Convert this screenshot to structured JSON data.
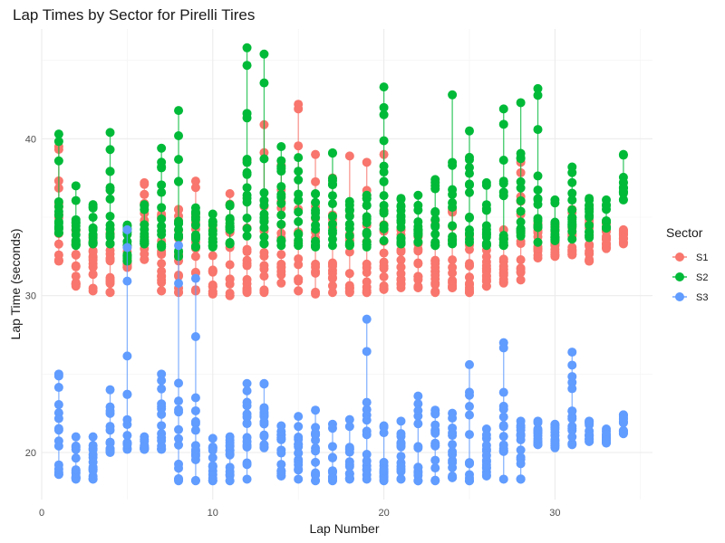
{
  "chart_data": {
    "type": "scatter",
    "title": "Lap Times by Sector for Pirelli Tires",
    "xlabel": "Lap Number",
    "ylabel": "Lap Time (seconds)",
    "xlim": [
      0,
      35.7
    ],
    "ylim": [
      17,
      47
    ],
    "xticks": [
      0,
      10,
      20,
      30
    ],
    "yticks": [
      20,
      30,
      40
    ],
    "grid": true,
    "legend": {
      "title": "Sector",
      "position": "right"
    },
    "series": [
      {
        "name": "S1",
        "color": "#F8766D",
        "ranges": [
          {
            "lap": 1,
            "min": 32.2,
            "max": 39.5
          },
          {
            "lap": 2,
            "min": 30.6,
            "max": 34.2
          },
          {
            "lap": 3,
            "min": 30.3,
            "max": 33.8
          },
          {
            "lap": 4,
            "min": 30.2,
            "max": 34.0
          },
          {
            "lap": 5,
            "min": 31.8,
            "max": 33.2
          },
          {
            "lap": 6,
            "min": 32.3,
            "max": 37.2
          },
          {
            "lap": 7,
            "min": 30.3,
            "max": 35.2
          },
          {
            "lap": 8,
            "min": 30.2,
            "max": 35.5
          },
          {
            "lap": 9,
            "min": 30.3,
            "max": 37.3
          },
          {
            "lap": 10,
            "min": 30.1,
            "max": 34.5
          },
          {
            "lap": 11,
            "min": 30.0,
            "max": 36.5
          },
          {
            "lap": 12,
            "min": 30.2,
            "max": 38.6
          },
          {
            "lap": 13,
            "min": 30.2,
            "max": 40.9
          },
          {
            "lap": 14,
            "min": 30.8,
            "max": 38.3
          },
          {
            "lap": 15,
            "min": 30.3,
            "max": 42.2
          },
          {
            "lap": 16,
            "min": 30.1,
            "max": 39.0
          },
          {
            "lap": 17,
            "min": 30.2,
            "max": 37.5
          },
          {
            "lap": 18,
            "min": 30.2,
            "max": 38.9
          },
          {
            "lap": 19,
            "min": 30.2,
            "max": 38.5
          },
          {
            "lap": 20,
            "min": 30.4,
            "max": 39.0
          },
          {
            "lap": 21,
            "min": 30.5,
            "max": 34.2
          },
          {
            "lap": 22,
            "min": 30.5,
            "max": 33.8
          },
          {
            "lap": 23,
            "min": 30.2,
            "max": 34.8
          },
          {
            "lap": 24,
            "min": 30.5,
            "max": 35.5
          },
          {
            "lap": 25,
            "min": 30.2,
            "max": 33.8
          },
          {
            "lap": 26,
            "min": 30.6,
            "max": 33.2
          },
          {
            "lap": 27,
            "min": 30.8,
            "max": 34.2
          },
          {
            "lap": 28,
            "min": 31.0,
            "max": 38.5
          },
          {
            "lap": 29,
            "min": 32.4,
            "max": 34.6
          },
          {
            "lap": 30,
            "min": 32.5,
            "max": 34.5
          },
          {
            "lap": 31,
            "min": 32.6,
            "max": 35.5
          },
          {
            "lap": 32,
            "min": 32.2,
            "max": 34.8
          },
          {
            "lap": 33,
            "min": 33.0,
            "max": 34.6
          },
          {
            "lap": 34,
            "min": 33.3,
            "max": 34.2
          }
        ]
      },
      {
        "name": "S2",
        "color": "#00BA38",
        "ranges": [
          {
            "lap": 1,
            "min": 34.0,
            "max": 40.3
          },
          {
            "lap": 2,
            "min": 33.2,
            "max": 37.0
          },
          {
            "lap": 3,
            "min": 33.3,
            "max": 35.8
          },
          {
            "lap": 4,
            "min": 33.3,
            "max": 40.4
          },
          {
            "lap": 5,
            "min": 32.2,
            "max": 34.5
          },
          {
            "lap": 6,
            "min": 33.3,
            "max": 35.8
          },
          {
            "lap": 7,
            "min": 33.1,
            "max": 39.4
          },
          {
            "lap": 8,
            "min": 32.5,
            "max": 41.8
          },
          {
            "lap": 9,
            "min": 33.1,
            "max": 35.6
          },
          {
            "lap": 10,
            "min": 33.1,
            "max": 35.2
          },
          {
            "lap": 11,
            "min": 33.3,
            "max": 35.8
          },
          {
            "lap": 12,
            "min": 33.8,
            "max": 45.8
          },
          {
            "lap": 13,
            "min": 33.3,
            "max": 45.4
          },
          {
            "lap": 14,
            "min": 33.2,
            "max": 39.5
          },
          {
            "lap": 15,
            "min": 33.2,
            "max": 38.8
          },
          {
            "lap": 16,
            "min": 33.1,
            "max": 36.5
          },
          {
            "lap": 17,
            "min": 33.2,
            "max": 39.1
          },
          {
            "lap": 18,
            "min": 33.2,
            "max": 36.0
          },
          {
            "lap": 19,
            "min": 33.1,
            "max": 36.4
          },
          {
            "lap": 20,
            "min": 33.5,
            "max": 43.3
          },
          {
            "lap": 21,
            "min": 33.3,
            "max": 36.2
          },
          {
            "lap": 22,
            "min": 33.4,
            "max": 36.4
          },
          {
            "lap": 23,
            "min": 33.2,
            "max": 37.4
          },
          {
            "lap": 24,
            "min": 33.3,
            "max": 42.8
          },
          {
            "lap": 25,
            "min": 33.4,
            "max": 40.5
          },
          {
            "lap": 26,
            "min": 33.2,
            "max": 37.2
          },
          {
            "lap": 27,
            "min": 33.2,
            "max": 41.9
          },
          {
            "lap": 28,
            "min": 33.8,
            "max": 42.3
          },
          {
            "lap": 29,
            "min": 33.4,
            "max": 43.2
          },
          {
            "lap": 30,
            "min": 33.5,
            "max": 36.1
          },
          {
            "lap": 31,
            "min": 33.6,
            "max": 38.2
          },
          {
            "lap": 32,
            "min": 33.7,
            "max": 36.2
          },
          {
            "lap": 33,
            "min": 34.3,
            "max": 36.1
          },
          {
            "lap": 34,
            "min": 36.1,
            "max": 39.0
          }
        ]
      },
      {
        "name": "S3",
        "color": "#619CFF",
        "ranges": [
          {
            "lap": 1,
            "min": 18.6,
            "max": 25.0
          },
          {
            "lap": 2,
            "min": 18.3,
            "max": 21.0
          },
          {
            "lap": 3,
            "min": 18.3,
            "max": 21.0
          },
          {
            "lap": 4,
            "min": 20.0,
            "max": 24.0
          },
          {
            "lap": 5,
            "min": 20.2,
            "max": 34.2
          },
          {
            "lap": 6,
            "min": 20.2,
            "max": 21.0
          },
          {
            "lap": 7,
            "min": 20.2,
            "max": 25.0
          },
          {
            "lap": 8,
            "min": 18.2,
            "max": 33.2
          },
          {
            "lap": 9,
            "min": 18.2,
            "max": 31.1
          },
          {
            "lap": 10,
            "min": 18.2,
            "max": 20.9
          },
          {
            "lap": 11,
            "min": 18.2,
            "max": 21.0
          },
          {
            "lap": 12,
            "min": 18.3,
            "max": 24.4
          },
          {
            "lap": 13,
            "min": 20.3,
            "max": 24.4
          },
          {
            "lap": 14,
            "min": 18.5,
            "max": 21.7
          },
          {
            "lap": 15,
            "min": 18.3,
            "max": 22.3
          },
          {
            "lap": 16,
            "min": 18.2,
            "max": 22.7
          },
          {
            "lap": 17,
            "min": 18.2,
            "max": 21.8
          },
          {
            "lap": 18,
            "min": 18.3,
            "max": 22.1
          },
          {
            "lap": 19,
            "min": 18.3,
            "max": 28.5
          },
          {
            "lap": 20,
            "min": 18.2,
            "max": 21.7
          },
          {
            "lap": 21,
            "min": 18.3,
            "max": 22.0
          },
          {
            "lap": 22,
            "min": 18.2,
            "max": 23.6
          },
          {
            "lap": 23,
            "min": 18.2,
            "max": 22.7
          },
          {
            "lap": 24,
            "min": 18.4,
            "max": 22.5
          },
          {
            "lap": 25,
            "min": 18.2,
            "max": 25.6
          },
          {
            "lap": 26,
            "min": 18.5,
            "max": 21.5
          },
          {
            "lap": 27,
            "min": 18.3,
            "max": 27.0
          },
          {
            "lap": 28,
            "min": 18.3,
            "max": 22.0
          },
          {
            "lap": 29,
            "min": 20.5,
            "max": 22.0
          },
          {
            "lap": 30,
            "min": 20.3,
            "max": 21.8
          },
          {
            "lap": 31,
            "min": 20.5,
            "max": 26.4
          },
          {
            "lap": 32,
            "min": 20.7,
            "max": 22.0
          },
          {
            "lap": 33,
            "min": 20.6,
            "max": 21.5
          },
          {
            "lap": 34,
            "min": 21.2,
            "max": 22.4
          }
        ]
      }
    ]
  }
}
